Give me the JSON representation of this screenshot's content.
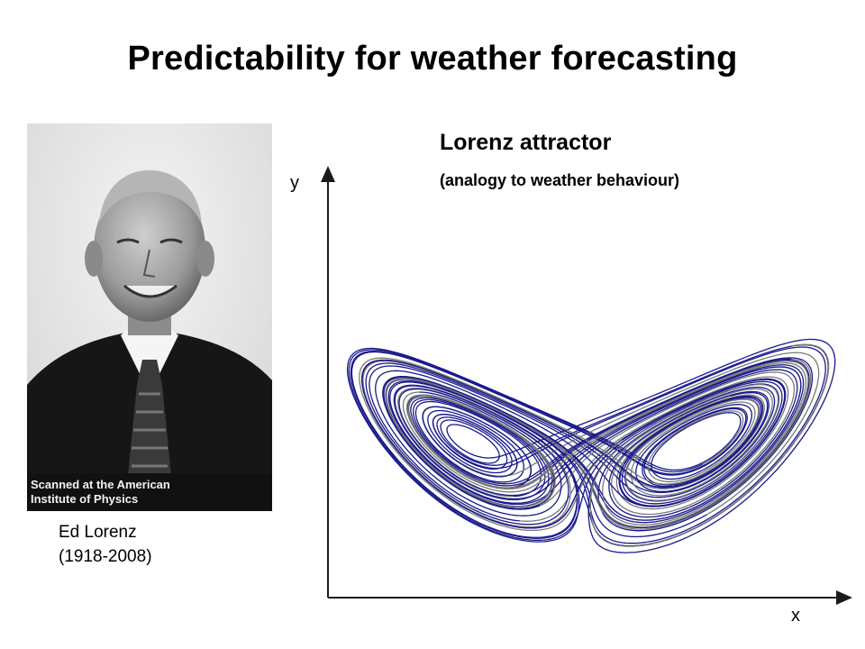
{
  "slide": {
    "title": "Predictability for weather forecasting"
  },
  "portrait": {
    "credit": "Scanned at the American\nInstitute of Physics",
    "caption_name": "Ed Lorenz",
    "caption_years": "(1918-2008)"
  },
  "attractor": {
    "title": "Lorenz attractor",
    "subtitle": "(analogy to weather behaviour)",
    "y_axis_label": "y",
    "x_axis_label": "x",
    "colors": {
      "trajectory_primary": "#1a1a8c",
      "trajectory_secondary": "#7a7a7a",
      "axis": "#1a1a1a"
    }
  }
}
